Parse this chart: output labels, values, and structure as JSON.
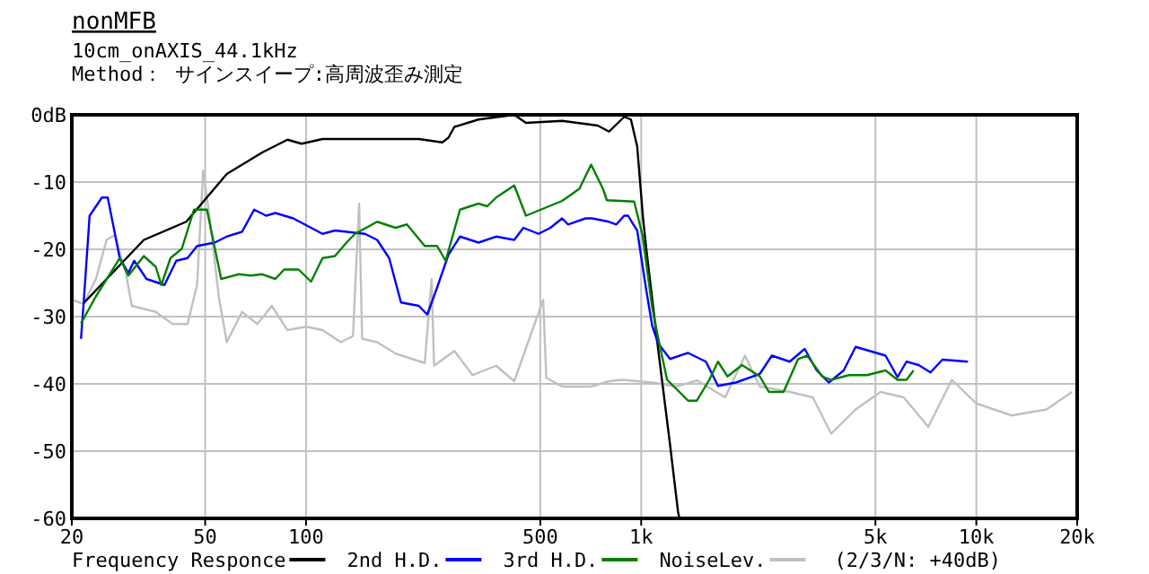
{
  "chart_data": {
    "type": "line",
    "title": "nonMFB",
    "subtitle": "10cm_onAXIS_44.1kHz",
    "annotations": [
      "Method： サインスイープ:高周波歪み測定",
      "(2/3/N: +40dB)"
    ],
    "log": "x",
    "grid": true,
    "legend": "bottom",
    "xlim": [
      20,
      20000
    ],
    "xticks": [
      20,
      50,
      100,
      500,
      {
        "value": 1000,
        "label": "1k"
      },
      {
        "value": 5000,
        "label": "5k"
      },
      {
        "value": 10000,
        "label": "10k"
      },
      {
        "value": 20000,
        "label": "20k"
      }
    ],
    "ylim": [
      -60,
      0
    ],
    "yticks": [
      {
        "value": 0,
        "label": "0dB"
      },
      -10,
      -20,
      -30,
      -40,
      -50,
      -60
    ],
    "series": [
      {
        "name": "Frequency Responce",
        "color": "#000000",
        "x": [
          21.7,
          32.8,
          43.9,
          58,
          74,
          88,
          97,
          112,
          156,
          217,
          255,
          266,
          277,
          327,
          418,
          453,
          581,
          742,
          802,
          890,
          932,
          973,
          1013,
          1035,
          1124,
          1219,
          1288,
          1300
        ],
        "values": [
          -28,
          -18.6,
          -15.9,
          -8.8,
          -5.6,
          -3.7,
          -4.3,
          -3.6,
          -3.6,
          -3.6,
          -4.1,
          -3.4,
          -1.8,
          -0.7,
          0,
          -1.2,
          -0.9,
          -1.6,
          -2.5,
          -0.3,
          -0.7,
          -4.7,
          -15.4,
          -19.8,
          -34.9,
          -49,
          -59,
          -60
        ]
      },
      {
        "name": "2nd H.D.",
        "color": "#0000ff",
        "x": [
          21.3,
          21.7,
          22.6,
          24.6,
          25.6,
          27.8,
          29.5,
          30.7,
          32,
          33.4,
          37.8,
          41,
          44.3,
          47.3,
          53.4,
          58,
          64.4,
          70,
          76,
          81,
          91.6,
          103.5,
          112,
          122,
          150,
          163,
          177,
          192,
          217,
          230,
          246,
          266,
          288,
          327,
          369,
          418,
          445,
          494,
          536,
          581,
          605,
          682,
          714,
          802,
          843,
          890,
          914,
          948,
          973,
          1035,
          1079,
          1124,
          1219,
          1380,
          1560,
          1695,
          1918,
          2260,
          2455,
          2775,
          3075,
          3340,
          3630,
          4020,
          4365,
          5360,
          5820,
          6190,
          6730,
          7300,
          7920,
          9440
        ],
        "values": [
          -33.3,
          -27.9,
          -15,
          -12.3,
          -12.3,
          -21.3,
          -23.5,
          -21.7,
          -23,
          -24.4,
          -25.3,
          -21.7,
          -21.3,
          -19.5,
          -19,
          -18.1,
          -17.4,
          -14.1,
          -15,
          -14.6,
          -15.4,
          -16.8,
          -17.7,
          -17.2,
          -17.7,
          -18.6,
          -21.3,
          -27.9,
          -28.4,
          -29.7,
          -25.7,
          -20.8,
          -18.1,
          -19,
          -18.1,
          -18.6,
          -16.8,
          -17.7,
          -16.8,
          -15.4,
          -16.3,
          -15.4,
          -15.4,
          -15.9,
          -16.3,
          -15,
          -15,
          -16.3,
          -17.2,
          -26,
          -31.4,
          -34,
          -36.3,
          -35.4,
          -36.7,
          -40.3,
          -39.8,
          -38.5,
          -35.8,
          -36.7,
          -34.8,
          -38,
          -39.8,
          -38,
          -34.5,
          -35.8,
          -39,
          -36.7,
          -37.2,
          -38.3,
          -36.4,
          -36.7
        ]
      },
      {
        "name": "3rd H.D.",
        "color": "#008000",
        "x": [
          21.3,
          23.6,
          27.8,
          29.5,
          32.8,
          35.6,
          37,
          39.4,
          42.6,
          46.3,
          50.6,
          55.8,
          63,
          68.5,
          74,
          81,
          86,
          95,
          103.5,
          112,
          122,
          132,
          140,
          163,
          185,
          200,
          226,
          246,
          261,
          288,
          327,
          347,
          369,
          418,
          453,
          581,
          654,
          709,
          769,
          790,
          953,
          1010,
          1079,
          1124,
          1195,
          1300,
          1380,
          1465,
          1597,
          1695,
          1810,
          2000,
          2260,
          2405,
          2660,
          2940,
          3130,
          3470,
          3690,
          4170,
          4720,
          5360,
          5820,
          6190,
          6500
        ],
        "values": [
          -31,
          -27,
          -21.3,
          -23.9,
          -21,
          -22.6,
          -25.3,
          -21.3,
          -19.9,
          -14.1,
          -14.1,
          -24.4,
          -23.7,
          -23.9,
          -23.7,
          -24.4,
          -23,
          -23,
          -24.8,
          -21.3,
          -21,
          -19,
          -17.7,
          -15.9,
          -16.8,
          -16.3,
          -19.5,
          -19.5,
          -21.7,
          -14.1,
          -13.2,
          -13.6,
          -12.3,
          -10.5,
          -15,
          -12.8,
          -11,
          -7.4,
          -11,
          -12.7,
          -12.9,
          -18,
          -28.7,
          -33.2,
          -39.4,
          -41.2,
          -42.5,
          -42.5,
          -39.4,
          -36.7,
          -38.9,
          -37.2,
          -38.9,
          -41.2,
          -41.2,
          -36.3,
          -35.8,
          -38.9,
          -39.4,
          -38.7,
          -38.7,
          -38,
          -39.4,
          -39.4,
          -38
        ]
      },
      {
        "name": "NoiseLev.",
        "color": "#c0c0c0",
        "x": [
          20,
          21.7,
          23.6,
          25.4,
          26.8,
          29,
          30.2,
          35.6,
          40,
          44.3,
          47.3,
          49.3,
          51.6,
          54.9,
          58,
          64.4,
          71.6,
          79,
          88,
          100,
          112,
          127,
          138,
          144,
          147,
          163,
          185,
          226,
          237,
          241,
          277,
          314,
          369,
          418,
          510,
          521,
          581,
          709,
          802,
          877,
          1079,
          1270,
          1470,
          1780,
          2040,
          2260,
          2775,
          3250,
          3690,
          4365,
          5180,
          6070,
          7190,
          8450,
          10000,
          12750,
          16200,
          19300
        ],
        "values": [
          -27.5,
          -28.1,
          -24.4,
          -18.6,
          -17.9,
          -23.5,
          -28.4,
          -29.3,
          -31.1,
          -31.1,
          -25.3,
          -8.3,
          -15.4,
          -27,
          -33.8,
          -29.3,
          -31.1,
          -28.4,
          -32,
          -31.5,
          -32,
          -33.8,
          -32.9,
          -13.2,
          -33.3,
          -33.8,
          -35.5,
          -36.9,
          -24.4,
          -37.3,
          -35.1,
          -38.7,
          -37.3,
          -39.6,
          -27.5,
          -39.1,
          -40.4,
          -40.4,
          -39.6,
          -39.4,
          -39.8,
          -40.4,
          -39.5,
          -42,
          -35.8,
          -40.4,
          -41.2,
          -42,
          -47.4,
          -43.8,
          -41.2,
          -42,
          -46.4,
          -39.4,
          -42.9,
          -44.7,
          -43.8,
          -41.2
        ]
      }
    ]
  }
}
